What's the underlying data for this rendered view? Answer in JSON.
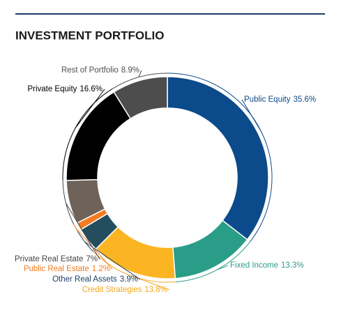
{
  "chart_data": {
    "type": "donut",
    "title": "INVESTMENT PORTFOLIO",
    "categories": [
      "Public Equity",
      "Fixed Income",
      "Credit Strategies",
      "Other Real Assets",
      "Public Real Estate",
      "Private Real Estate",
      "Private Equity",
      "Rest of Portfolio"
    ],
    "values": [
      35.6,
      13.3,
      13.8,
      3.9,
      1.2,
      7,
      16.6,
      8.9
    ],
    "value_labels": [
      "35.6%",
      "13.3%",
      "13.8%",
      "3.9%",
      "1.2%",
      "7%",
      "16.6%",
      "8.9%"
    ],
    "colors": [
      "#0b4a8b",
      "#2a9d88",
      "#fbb522",
      "#244d5e",
      "#f47b20",
      "#6e6259",
      "#000000",
      "#4d4d4d"
    ]
  }
}
